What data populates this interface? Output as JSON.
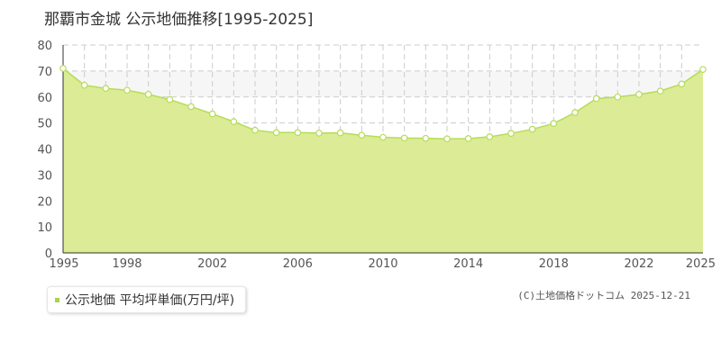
{
  "chart_data": {
    "type": "area",
    "title": "那覇市金城 公示地価推移[1995-2025]",
    "xlabel": "",
    "ylabel": "",
    "xlim": [
      1995,
      2025
    ],
    "ylim": [
      0,
      80
    ],
    "x_ticks": [
      1995,
      1998,
      2002,
      2006,
      2010,
      2014,
      2018,
      2022,
      2025
    ],
    "y_ticks": [
      0,
      10,
      20,
      30,
      40,
      50,
      60,
      70,
      80
    ],
    "grid": true,
    "series": [
      {
        "name": "公示地価 平均坪単価(万円/坪)",
        "color": "#a8d34a",
        "fill": "#dceb95",
        "line": "#b6dc5a",
        "x": [
          1995,
          1996,
          1997,
          1998,
          1999,
          2000,
          2001,
          2002,
          2003,
          2004,
          2005,
          2006,
          2007,
          2008,
          2009,
          2010,
          2011,
          2012,
          2013,
          2014,
          2015,
          2016,
          2017,
          2018,
          2019,
          2020,
          2021,
          2022,
          2023,
          2024,
          2025
        ],
        "y": [
          71.0,
          64.5,
          63.3,
          62.6,
          61.0,
          59.0,
          56.3,
          53.5,
          50.5,
          47.2,
          46.3,
          46.3,
          46.1,
          46.2,
          45.3,
          44.5,
          44.2,
          44.1,
          43.9,
          44.0,
          44.7,
          46.0,
          47.6,
          49.8,
          54.0,
          59.4,
          60.0,
          61.0,
          62.3,
          65.0,
          70.6
        ]
      }
    ],
    "legend_position": "bottom-left",
    "upper_band": {
      "from": 60,
      "to": 70,
      "color": "#f6f6f6"
    }
  },
  "legend": {
    "label": "公示地価 平均坪単価(万円/坪)"
  },
  "credit": "(C)土地価格ドットコム 2025-12-21"
}
